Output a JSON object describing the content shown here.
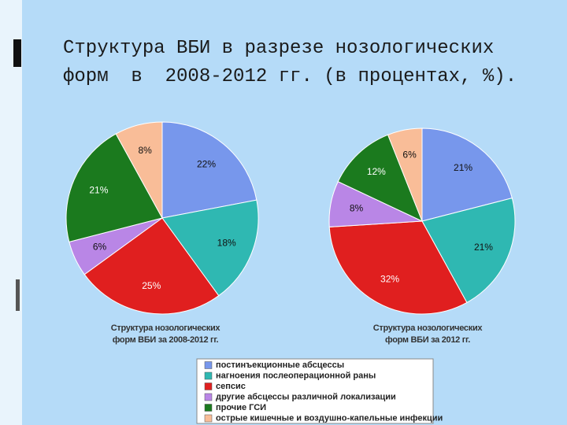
{
  "title": "Структура ВБИ в разрезе нозологических форм  в  2008-2012 гг. (в процентах, %).",
  "chart_data": [
    {
      "type": "pie",
      "subtitle": "Структура нозологических форм ВБИ за 2008-2012 гг.",
      "values": [
        22,
        18,
        25,
        6,
        21,
        8
      ],
      "value_labels": [
        "22%",
        "18%",
        "25%",
        "6%",
        "21%",
        "8%"
      ]
    },
    {
      "type": "pie",
      "subtitle": "Структура нозологических форм ВБИ за 2012 гг.",
      "values": [
        21,
        21,
        32,
        8,
        12,
        6
      ],
      "value_labels": [
        "21%",
        "21%",
        "32%",
        "8%",
        "12%",
        "6%"
      ]
    }
  ],
  "legend": {
    "labels": [
      "постинъекционные абсцессы",
      "нагноения послеоперационной раны",
      "сепсис",
      "другие абсцессы различной локализации",
      "прочие ГСИ",
      "острые кишечные и воздушно-капельные инфекции"
    ],
    "colors": [
      "#7797ec",
      "#2fb8b2",
      "#e01f1f",
      "#b986e6",
      "#1b7a1e",
      "#f9bd98"
    ]
  }
}
